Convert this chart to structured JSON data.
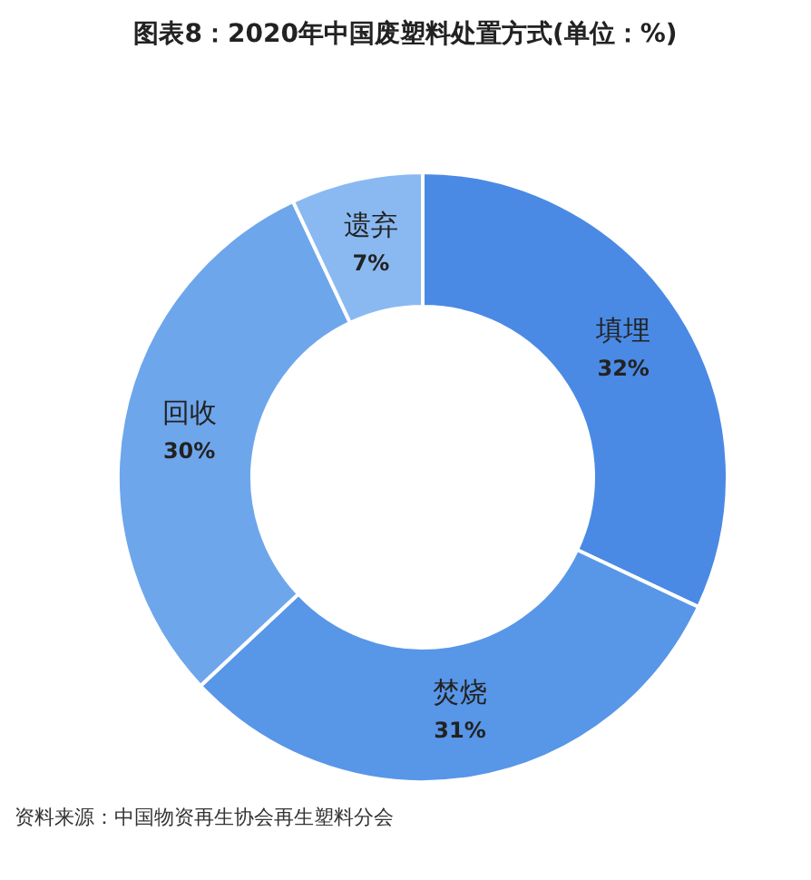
{
  "chart_data": {
    "type": "donut",
    "title": "图表8：2020年中国废塑料处置方式(单位：%)",
    "categories": [
      "填埋",
      "焚烧",
      "回收",
      "遗弃"
    ],
    "values": [
      32,
      31,
      30,
      7
    ],
    "value_labels": [
      "32%",
      "31%",
      "30%",
      "7%"
    ],
    "colors": [
      "#4a8ae4",
      "#5896e8",
      "#6ea6ec",
      "#8ab9f1"
    ],
    "annotations": [
      "资料来源：中国物资再生协会再生塑料分会"
    ]
  }
}
